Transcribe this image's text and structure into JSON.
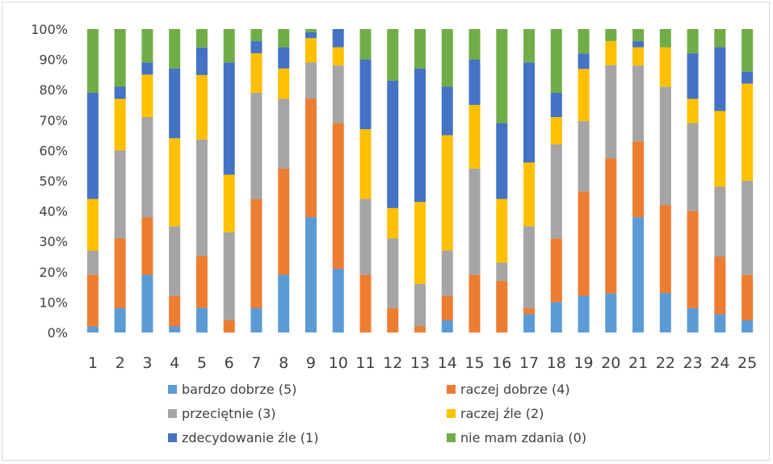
{
  "chart_data": {
    "type": "bar",
    "stacked": true,
    "percent": true,
    "title": "",
    "xlabel": "",
    "ylabel": "",
    "ylim": [
      0,
      100
    ],
    "yticks": [
      0,
      10,
      20,
      30,
      40,
      50,
      60,
      70,
      80,
      90,
      100
    ],
    "ytick_labels": [
      "0%",
      "10%",
      "20%",
      "30%",
      "40%",
      "50%",
      "60%",
      "70%",
      "80%",
      "90%",
      "100%"
    ],
    "grid": false,
    "legend_position": "bottom",
    "categories": [
      "1",
      "2",
      "3",
      "4",
      "5",
      "6",
      "7",
      "8",
      "9",
      "10",
      "11",
      "12",
      "13",
      "14",
      "15",
      "16",
      "17",
      "18",
      "19",
      "20",
      "21",
      "22",
      "23",
      "24",
      "25"
    ],
    "series": [
      {
        "name": "bardzo dobrze (5)",
        "color": "#5B9BD5",
        "values": [
          2,
          8,
          19,
          2,
          8,
          0,
          8,
          19,
          38,
          21,
          0,
          0,
          0,
          4,
          0,
          0,
          6,
          10,
          12,
          13,
          38,
          13,
          8,
          6,
          4
        ]
      },
      {
        "name": "raczej dobrze (4)",
        "color": "#ED7D31",
        "values": [
          17,
          23,
          19,
          10,
          17,
          4,
          36,
          35,
          39,
          48,
          19,
          8,
          2,
          8,
          19,
          17,
          2,
          21,
          34,
          45,
          25,
          29,
          32,
          19,
          15
        ]
      },
      {
        "name": "przeciętnie (3)",
        "color": "#A5A5A5",
        "values": [
          8,
          29,
          33,
          23,
          38,
          29,
          35,
          23,
          12,
          19,
          25,
          23,
          14,
          15,
          35,
          6,
          27,
          31,
          23,
          31,
          25,
          39,
          29,
          23,
          31
        ]
      },
      {
        "name": "raczej źle (2)",
        "color": "#FFC000",
        "values": [
          17,
          17,
          14,
          29,
          21,
          19,
          13,
          10,
          8,
          6,
          23,
          10,
          27,
          38,
          21,
          21,
          21,
          9,
          17,
          8,
          6,
          13,
          8,
          25,
          32
        ]
      },
      {
        "name": "zdecydowanie źle (1)",
        "color": "#4472C4",
        "values": [
          35,
          4,
          4,
          23,
          9,
          37,
          4,
          7,
          2,
          6,
          23,
          42,
          44,
          16,
          15,
          25,
          33,
          8,
          5,
          0,
          2,
          0,
          15,
          21,
          4
        ]
      },
      {
        "name": "nie mam zdania (0)",
        "color": "#70AD47",
        "values": [
          21,
          19,
          11,
          13,
          6,
          11,
          4,
          6,
          1,
          0,
          10,
          17,
          13,
          19,
          10,
          31,
          11,
          21,
          8,
          4,
          4,
          6,
          8,
          6,
          14
        ]
      }
    ]
  }
}
